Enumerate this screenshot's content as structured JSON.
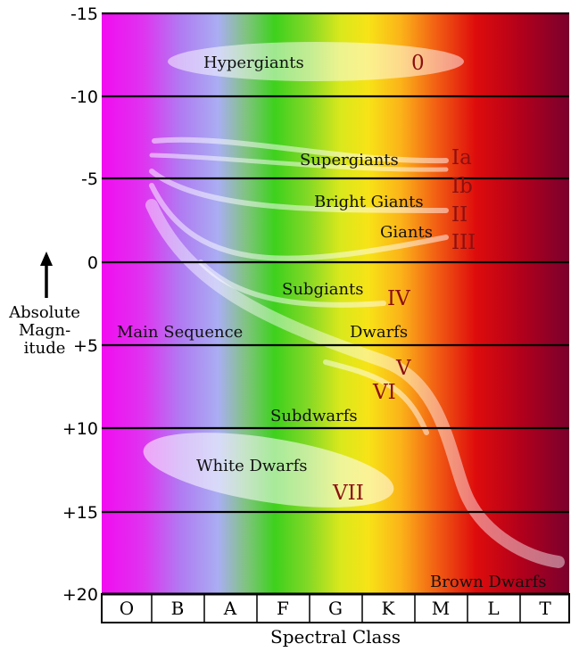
{
  "y_axis": {
    "title_lines": [
      "Absolute",
      "Magn-",
      "itude"
    ],
    "ticks": [
      "-15",
      "-10",
      "-5",
      "0",
      "+5",
      "+10",
      "+15",
      "+20"
    ]
  },
  "x_axis": {
    "title": "Spectral Class",
    "classes": [
      "O",
      "B",
      "A",
      "F",
      "G",
      "K",
      "M",
      "L",
      "T"
    ]
  },
  "regions": {
    "hypergiants": "Hypergiants",
    "supergiants": "Supergiants",
    "bright_giants": "Bright Giants",
    "giants": "Giants",
    "subgiants": "Subgiants",
    "main_sequence": "Main Sequence",
    "dwarfs": "Dwarfs",
    "subdwarfs": "Subdwarfs",
    "white_dwarfs": "White Dwarfs",
    "brown_dwarfs": "Brown Dwarfs"
  },
  "luminosity_classes": {
    "hypergiants": "0",
    "supergiants_a": "Ia",
    "supergiants_b": "Ib",
    "bright_giants": "II",
    "giants": "III",
    "subgiants": "IV",
    "dwarfs": "V",
    "subdwarfs": "VI",
    "white_dwarfs": "VII"
  },
  "colors": {
    "luminosity_class_text": "#8b1010",
    "band_lines": "#ffffff"
  }
}
